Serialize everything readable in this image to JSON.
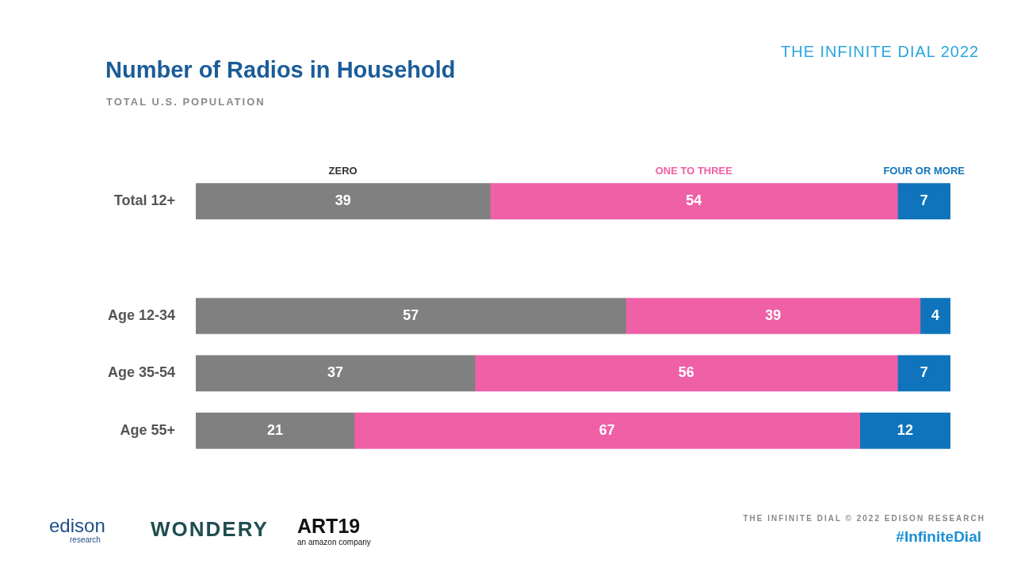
{
  "chart_data": {
    "type": "bar",
    "orientation": "horizontal",
    "stacked": true,
    "data_labels": true,
    "grid": false,
    "tick_labels": "y",
    "legend": "top",
    "title": "Number of Radios in Household",
    "subtitle": "TOTAL U.S. POPULATION",
    "annotations": [
      "THE INFINITE DIAL 2022",
      "edison",
      "research",
      "WONDERY",
      "ART19",
      "an amazon company",
      "THE INFINITE DIAL   © 2022 EDISON RESEARCH",
      "#InfiniteDial"
    ],
    "categories": [
      "Total 12+",
      null,
      "Age 12-34",
      "Age 35-54",
      "Age 55+"
    ],
    "series": [
      {
        "name": "ZERO",
        "color": "#808080",
        "values": [
          39,
          null,
          57,
          37,
          21
        ]
      },
      {
        "name": "ONE TO THREE",
        "color": "#ef60a7",
        "values": [
          54,
          null,
          39,
          56,
          67
        ]
      },
      {
        "name": "FOUR OR MORE",
        "color": "#0f74bc",
        "values": [
          7,
          null,
          4,
          7,
          12
        ]
      }
    ],
    "xlim": [
      0,
      100
    ]
  }
}
